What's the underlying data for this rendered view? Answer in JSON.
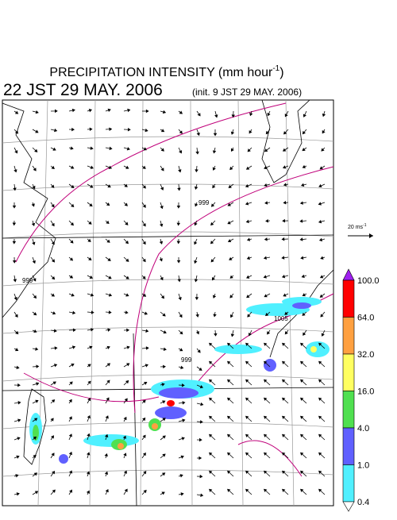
{
  "header": {
    "title": "PRECIPITATION INTENSITY (mm hour",
    "title_sup": "-1",
    "title_end": ")",
    "time": "22 JST 29 MAY. 2006",
    "init": "(init. 9 JST 29 MAY. 2006)"
  },
  "reference_vector": {
    "label": "20 ms",
    "sup": "-1"
  },
  "colorbar": {
    "labels": [
      "100.0",
      "64.0",
      "32.0",
      "16.0",
      "4.0",
      "1.0",
      "0.4"
    ],
    "colors": [
      "#a020f0",
      "#ff0000",
      "#ffa040",
      "#ffff60",
      "#50e050",
      "#6060ff",
      "#50f0ff",
      "#ffffff"
    ]
  },
  "contour_labels": [
    "999",
    "999",
    "1005",
    "999"
  ]
}
